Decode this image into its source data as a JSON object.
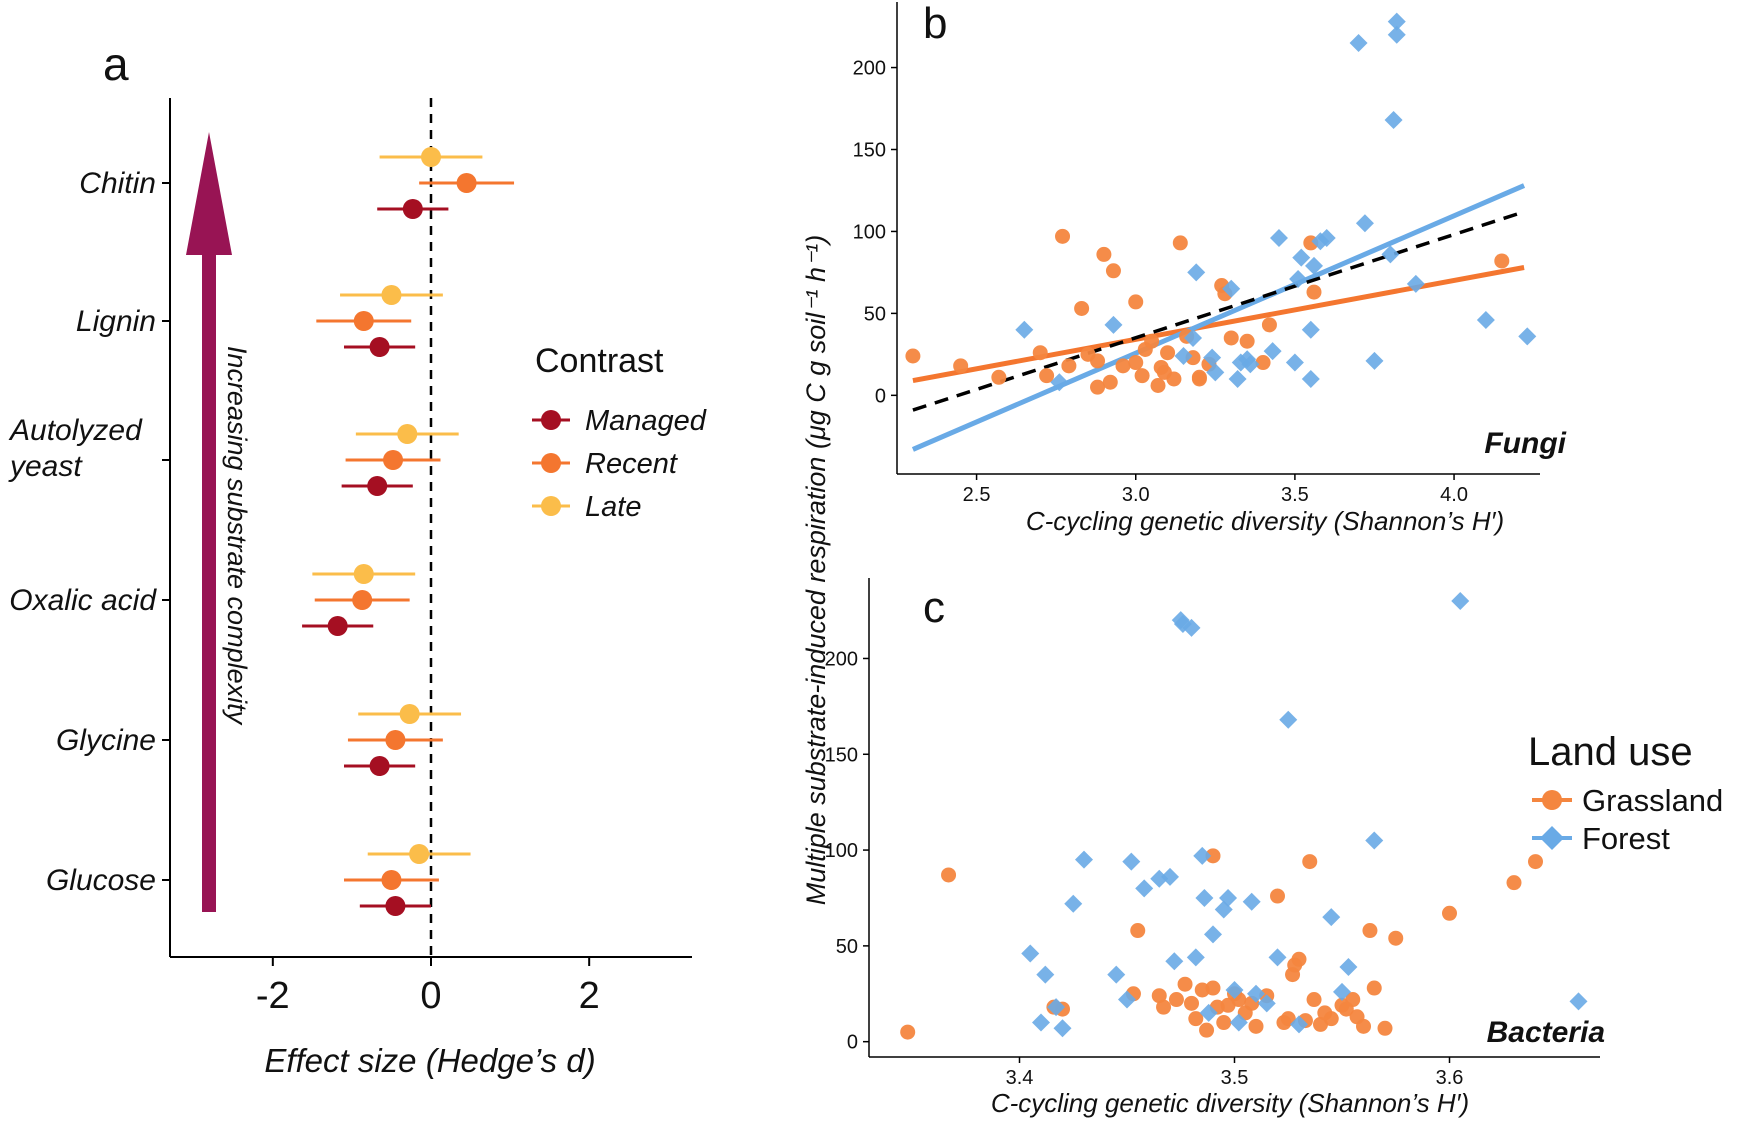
{
  "chart_data": [
    {
      "panel": "a",
      "type": "scatter",
      "subtype": "forest-plot",
      "panel_label": "a",
      "xlabel": "Effect size (Hedge’s d)",
      "xlim": [
        -3.3,
        3.3
      ],
      "xticks": [
        -2,
        0,
        2
      ],
      "xtick_labels": [
        "-2",
        "0",
        "2"
      ],
      "reference_line": 0,
      "categories": [
        "Chitin",
        "Lignin",
        "Autolyzed yeast",
        "Oxalic acid",
        "Glycine",
        "Glucose"
      ],
      "category_label_lines": [
        [
          "Chitin"
        ],
        [
          "Lignin"
        ],
        [
          "Autolyzed",
          "yeast"
        ],
        [
          "Oxalic acid"
        ],
        [
          "Glycine"
        ],
        [
          "Glucose"
        ]
      ],
      "arrow_label": "Increasing substrate complexity",
      "legend_title": "Contrast",
      "series": [
        {
          "name": "Late",
          "color": "#FBBD4A",
          "estimates": [
            0.0,
            -0.5,
            -0.3,
            -0.85,
            -0.27,
            -0.15
          ],
          "lower": [
            -0.65,
            -1.15,
            -0.95,
            -1.5,
            -0.92,
            -0.8
          ],
          "upper": [
            0.65,
            0.15,
            0.35,
            -0.2,
            0.38,
            0.5
          ]
        },
        {
          "name": "Recent",
          "color": "#F4762F",
          "estimates": [
            0.45,
            -0.85,
            -0.48,
            -0.87,
            -0.45,
            -0.5
          ],
          "lower": [
            -0.15,
            -1.45,
            -1.08,
            -1.47,
            -1.05,
            -1.1
          ],
          "upper": [
            1.05,
            -0.25,
            0.12,
            -0.27,
            0.15,
            0.1
          ]
        },
        {
          "name": "Managed",
          "color": "#A50F22",
          "estimates": [
            -0.23,
            -0.65,
            -0.68,
            -1.18,
            -0.65,
            -0.45
          ],
          "lower": [
            -0.68,
            -1.1,
            -1.13,
            -1.63,
            -1.1,
            -0.9
          ],
          "upper": [
            0.22,
            -0.2,
            -0.23,
            -0.73,
            -0.2,
            0.0
          ]
        }
      ],
      "legend_order": [
        "Managed",
        "Recent",
        "Late"
      ]
    },
    {
      "panel": "b",
      "type": "scatter",
      "panel_label": "b",
      "annotation": "Fungi",
      "xlabel": "C-cycling genetic diversity (Shannon’s H′)",
      "ylabel": "Multiple substrate-induced respiration (μg C g soil⁻¹ h⁻¹)",
      "xlim": [
        2.25,
        4.27
      ],
      "ylim": [
        -48,
        240
      ],
      "xticks": [
        2.5,
        3.0,
        3.5,
        4.0
      ],
      "xtick_labels": [
        "2.5",
        "3.0",
        "3.5",
        "4.0"
      ],
      "yticks": [
        0,
        50,
        100,
        150,
        200
      ],
      "ytick_labels": [
        "0",
        "50",
        "100",
        "150",
        "200"
      ],
      "series": [
        {
          "name": "Grassland",
          "color": "#F4863F",
          "marker": "circle",
          "x": [
            2.3,
            2.45,
            2.57,
            2.7,
            2.72,
            2.77,
            2.79,
            2.83,
            2.85,
            2.88,
            2.88,
            2.9,
            2.92,
            2.93,
            2.96,
            3.0,
            3.0,
            3.02,
            3.03,
            3.05,
            3.07,
            3.08,
            3.09,
            3.1,
            3.12,
            3.14,
            3.16,
            3.18,
            3.2,
            3.2,
            3.23,
            3.27,
            3.28,
            3.3,
            3.35,
            3.4,
            3.42,
            3.55,
            3.56,
            4.15
          ],
          "y": [
            24,
            18,
            11,
            26,
            12,
            97,
            18,
            53,
            25,
            21,
            5,
            86,
            8,
            76,
            18,
            57,
            20,
            12,
            28,
            33,
            6,
            17,
            14,
            26,
            10,
            93,
            36,
            23,
            11,
            10,
            19,
            67,
            62,
            35,
            33,
            20,
            43,
            93,
            63,
            82
          ]
        },
        {
          "name": "Forest",
          "color": "#69AAE6",
          "marker": "diamond",
          "x": [
            2.65,
            2.76,
            2.93,
            3.15,
            3.18,
            3.19,
            3.24,
            3.25,
            3.3,
            3.32,
            3.33,
            3.35,
            3.36,
            3.43,
            3.45,
            3.5,
            3.51,
            3.52,
            3.55,
            3.55,
            3.56,
            3.58,
            3.6,
            3.7,
            3.72,
            3.75,
            3.8,
            3.81,
            3.82,
            3.82,
            3.88,
            4.1,
            4.23
          ],
          "y": [
            40,
            8,
            43,
            24,
            35,
            75,
            23,
            14,
            65,
            10,
            20,
            22,
            19,
            27,
            96,
            20,
            71,
            84,
            10,
            40,
            79,
            94,
            96,
            215,
            105,
            21,
            86,
            168,
            228,
            220,
            68,
            46,
            36
          ]
        }
      ],
      "fit_lines": [
        {
          "name": "Grassland",
          "color": "#F4762F",
          "style": "solid",
          "x": [
            2.3,
            4.22
          ],
          "y": [
            9,
            78
          ]
        },
        {
          "name": "Forest",
          "color": "#69AAE6",
          "style": "solid",
          "x": [
            2.3,
            4.22
          ],
          "y": [
            -33,
            128
          ]
        },
        {
          "name": "All",
          "color": "#000000",
          "style": "dashed",
          "x": [
            2.3,
            4.22
          ],
          "y": [
            -9,
            112
          ]
        }
      ]
    },
    {
      "panel": "c",
      "type": "scatter",
      "panel_label": "c",
      "annotation": "Bacteria",
      "xlabel": "C-cycling genetic diversity (Shannon’s H′)",
      "xlim": [
        3.33,
        3.67
      ],
      "ylim": [
        -8,
        242
      ],
      "xticks": [
        3.4,
        3.5,
        3.6
      ],
      "xtick_labels": [
        "3.4",
        "3.5",
        "3.6"
      ],
      "yticks": [
        0,
        50,
        100,
        150,
        200
      ],
      "ytick_labels": [
        "0",
        "50",
        "100",
        "150",
        "200"
      ],
      "legend_title": "Land use",
      "series": [
        {
          "name": "Grassland",
          "color": "#F4863F",
          "marker": "circle",
          "x": [
            3.348,
            3.367,
            3.416,
            3.42,
            3.453,
            3.455,
            3.465,
            3.467,
            3.473,
            3.477,
            3.48,
            3.482,
            3.485,
            3.487,
            3.49,
            3.49,
            3.492,
            3.495,
            3.497,
            3.5,
            3.502,
            3.505,
            3.508,
            3.51,
            3.515,
            3.52,
            3.523,
            3.525,
            3.527,
            3.528,
            3.53,
            3.533,
            3.535,
            3.537,
            3.54,
            3.542,
            3.545,
            3.55,
            3.552,
            3.555,
            3.557,
            3.56,
            3.563,
            3.565,
            3.57,
            3.575,
            3.6,
            3.63,
            3.64
          ],
          "y": [
            5,
            87,
            18,
            17,
            25,
            58,
            24,
            18,
            22,
            30,
            20,
            12,
            27,
            6,
            97,
            28,
            18,
            10,
            19,
            25,
            22,
            15,
            20,
            8,
            24,
            76,
            10,
            12,
            35,
            40,
            43,
            11,
            94,
            22,
            9,
            15,
            12,
            19,
            17,
            22,
            13,
            8,
            58,
            28,
            7,
            54,
            67,
            83,
            94
          ]
        },
        {
          "name": "Forest",
          "color": "#69AAE6",
          "marker": "diamond",
          "x": [
            3.405,
            3.41,
            3.412,
            3.417,
            3.42,
            3.425,
            3.43,
            3.445,
            3.45,
            3.452,
            3.458,
            3.465,
            3.47,
            3.472,
            3.475,
            3.476,
            3.48,
            3.482,
            3.485,
            3.486,
            3.488,
            3.49,
            3.495,
            3.497,
            3.5,
            3.502,
            3.508,
            3.51,
            3.515,
            3.52,
            3.525,
            3.53,
            3.545,
            3.55,
            3.553,
            3.565,
            3.605,
            3.66
          ],
          "y": [
            46,
            10,
            35,
            18,
            7,
            72,
            95,
            35,
            22,
            94,
            80,
            85,
            86,
            42,
            220,
            218,
            216,
            44,
            97,
            75,
            15,
            56,
            69,
            75,
            27,
            10,
            73,
            25,
            20,
            44,
            168,
            9,
            65,
            26,
            39,
            105,
            230,
            21
          ]
        }
      ]
    }
  ]
}
